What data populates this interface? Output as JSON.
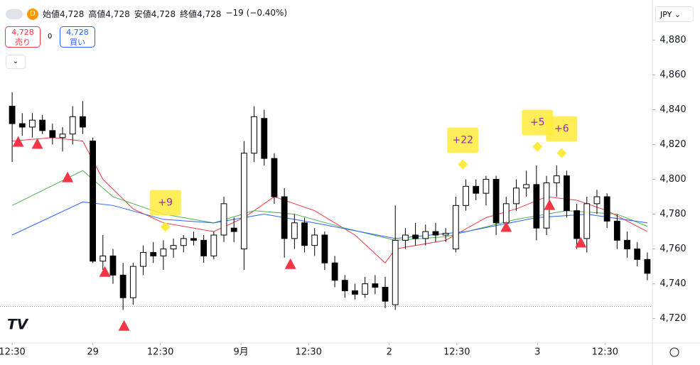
{
  "header": {
    "symbol_badge": "D",
    "items": [
      "始値4,728",
      "高値4,728",
      "安値4,728",
      "終値4,728",
      "−19 (−0.40%)"
    ],
    "sell_price": "4,728",
    "sell_label": "売り",
    "spread": "0",
    "buy_price": "4,728",
    "buy_label": "買い",
    "currency": "JPY"
  },
  "chart_data": {
    "type": "candlestick",
    "ylim": [
      4706,
      4903
    ],
    "yticks": [
      {
        "value": 4720,
        "label": "4,720"
      },
      {
        "value": 4740,
        "label": "4,740"
      },
      {
        "value": 4760,
        "label": "4,760"
      },
      {
        "value": 4780,
        "label": "4,780"
      },
      {
        "value": 4800,
        "label": "4,800"
      },
      {
        "value": 4820,
        "label": "4,820"
      },
      {
        "value": 4840,
        "label": "4,840"
      },
      {
        "value": 4860,
        "label": "4,860"
      },
      {
        "value": 4880,
        "label": "4,880"
      }
    ],
    "xlim": [
      -0.5,
      63.5
    ],
    "xticks": [
      {
        "value": 0,
        "label": "12:30"
      },
      {
        "value": 8,
        "label": "29"
      },
      {
        "value": 14.7,
        "label": "12:30"
      },
      {
        "value": 22.7,
        "label": "9月"
      },
      {
        "value": 29.4,
        "label": "12:30"
      },
      {
        "value": 37.4,
        "label": "2"
      },
      {
        "value": 44.1,
        "label": "12:30"
      },
      {
        "value": 52.1,
        "label": "3"
      },
      {
        "value": 58.8,
        "label": "12:30"
      }
    ],
    "open": [
      4842,
      4832,
      4830,
      4834,
      4828,
      4824,
      4826,
      4836,
      4822,
      4753,
      4756,
      4745,
      4732,
      4750,
      4758,
      4756,
      4760,
      4762,
      4766,
      4765,
      4756,
      4768,
      4772,
      4760,
      4815,
      4835,
      4812,
      4790,
      4766,
      4775,
      4762,
      4768,
      4752,
      4742,
      4736,
      4734,
      4740,
      4738,
      4728,
      4765,
      4768,
      4766,
      4770,
      4768,
      4760,
      4785,
      4796,
      4792,
      4800,
      4775,
      4786,
      4795,
      4797,
      4772,
      4798,
      4802,
      4782,
      4766,
      4786,
      4790,
      4776,
      4765,
      4760,
      4754
    ],
    "high": [
      4850,
      4838,
      4838,
      4837,
      4832,
      4830,
      4842,
      4845,
      4824,
      4768,
      4760,
      4752,
      4752,
      4762,
      4764,
      4765,
      4766,
      4768,
      4770,
      4768,
      4770,
      4790,
      4778,
      4822,
      4842,
      4840,
      4815,
      4795,
      4780,
      4778,
      4772,
      4770,
      4756,
      4745,
      4740,
      4744,
      4745,
      4744,
      4785,
      4772,
      4775,
      4774,
      4775,
      4772,
      4790,
      4800,
      4800,
      4802,
      4802,
      4790,
      4800,
      4805,
      4808,
      4802,
      4808,
      4805,
      4786,
      4790,
      4794,
      4792,
      4780,
      4770,
      4764,
      4758
    ],
    "low": [
      4810,
      4825,
      4824,
      4826,
      4820,
      4816,
      4820,
      4826,
      4752,
      4748,
      4740,
      4725,
      4728,
      4745,
      4752,
      4748,
      4755,
      4758,
      4762,
      4752,
      4754,
      4764,
      4764,
      4748,
      4810,
      4808,
      4786,
      4755,
      4760,
      4758,
      4756,
      4748,
      4738,
      4732,
      4731,
      4732,
      4734,
      4726,
      4725,
      4760,
      4762,
      4762,
      4764,
      4764,
      4758,
      4782,
      4788,
      4785,
      4768,
      4770,
      4782,
      4790,
      4765,
      4768,
      4790,
      4778,
      4760,
      4758,
      4780,
      4772,
      4760,
      4755,
      4750,
      4742
    ],
    "close": [
      4832,
      4830,
      4834,
      4828,
      4824,
      4826,
      4836,
      4830,
      4753,
      4756,
      4745,
      4732,
      4750,
      4758,
      4756,
      4760,
      4762,
      4766,
      4765,
      4756,
      4768,
      4786,
      4770,
      4815,
      4836,
      4812,
      4790,
      4766,
      4775,
      4762,
      4768,
      4752,
      4742,
      4736,
      4734,
      4740,
      4738,
      4730,
      4765,
      4768,
      4766,
      4770,
      4768,
      4769,
      4785,
      4796,
      4792,
      4800,
      4775,
      4786,
      4795,
      4797,
      4772,
      4798,
      4802,
      4782,
      4766,
      4786,
      4790,
      4776,
      4765,
      4760,
      4754,
      4746
    ],
    "bull_color": "#ffffff",
    "bear_color": "#000000",
    "edge_color": "#000000",
    "lines": [
      {
        "color": "#f23645",
        "x": [
          0,
          4,
          7,
          9,
          12,
          15,
          20,
          23,
          26,
          30,
          34,
          37,
          38,
          43,
          47,
          50,
          53,
          56,
          59,
          63
        ],
        "values": [
          4822,
          4824,
          4822,
          4800,
          4783,
          4775,
          4770,
          4778,
          4790,
          4782,
          4768,
          4752,
          4760,
          4765,
          4778,
          4783,
          4790,
          4788,
          4782,
          4770
        ]
      },
      {
        "color": "#4caf50",
        "x": [
          0,
          7,
          10,
          15,
          20,
          24,
          28,
          33,
          38,
          43,
          50,
          55,
          60,
          63
        ],
        "values": [
          4785,
          4805,
          4790,
          4780,
          4775,
          4782,
          4780,
          4772,
          4765,
          4767,
          4777,
          4782,
          4780,
          4773
        ]
      },
      {
        "color": "#2962ff",
        "x": [
          0,
          7,
          10,
          15,
          20,
          25,
          30,
          38,
          45,
          52,
          57,
          63
        ],
        "values": [
          4768,
          4787,
          4785,
          4777,
          4775,
          4780,
          4775,
          4766,
          4770,
          4778,
          4780,
          4775
        ]
      }
    ],
    "markers": {
      "color": "#f23645",
      "x": [
        0.6,
        2.5,
        5.5,
        9.2,
        11.1,
        27.6,
        49,
        53.3,
        56.4
      ],
      "values": [
        4821.6,
        4820.4,
        4801.2,
        4746.9,
        4715.9,
        4751.4,
        4772.7,
        4785.3,
        4763.7
      ]
    },
    "annotations": {
      "color": "#ffeb3b",
      "text_color": "#9c27b0",
      "x": [
        15.2,
        44.7,
        52.1,
        54.5
      ],
      "values": [
        4772.7,
        4808.6,
        4818.8,
        4815.1
      ],
      "labels": [
        "+9",
        "+22",
        "+5",
        "+6"
      ]
    },
    "price_line": 4727
  }
}
